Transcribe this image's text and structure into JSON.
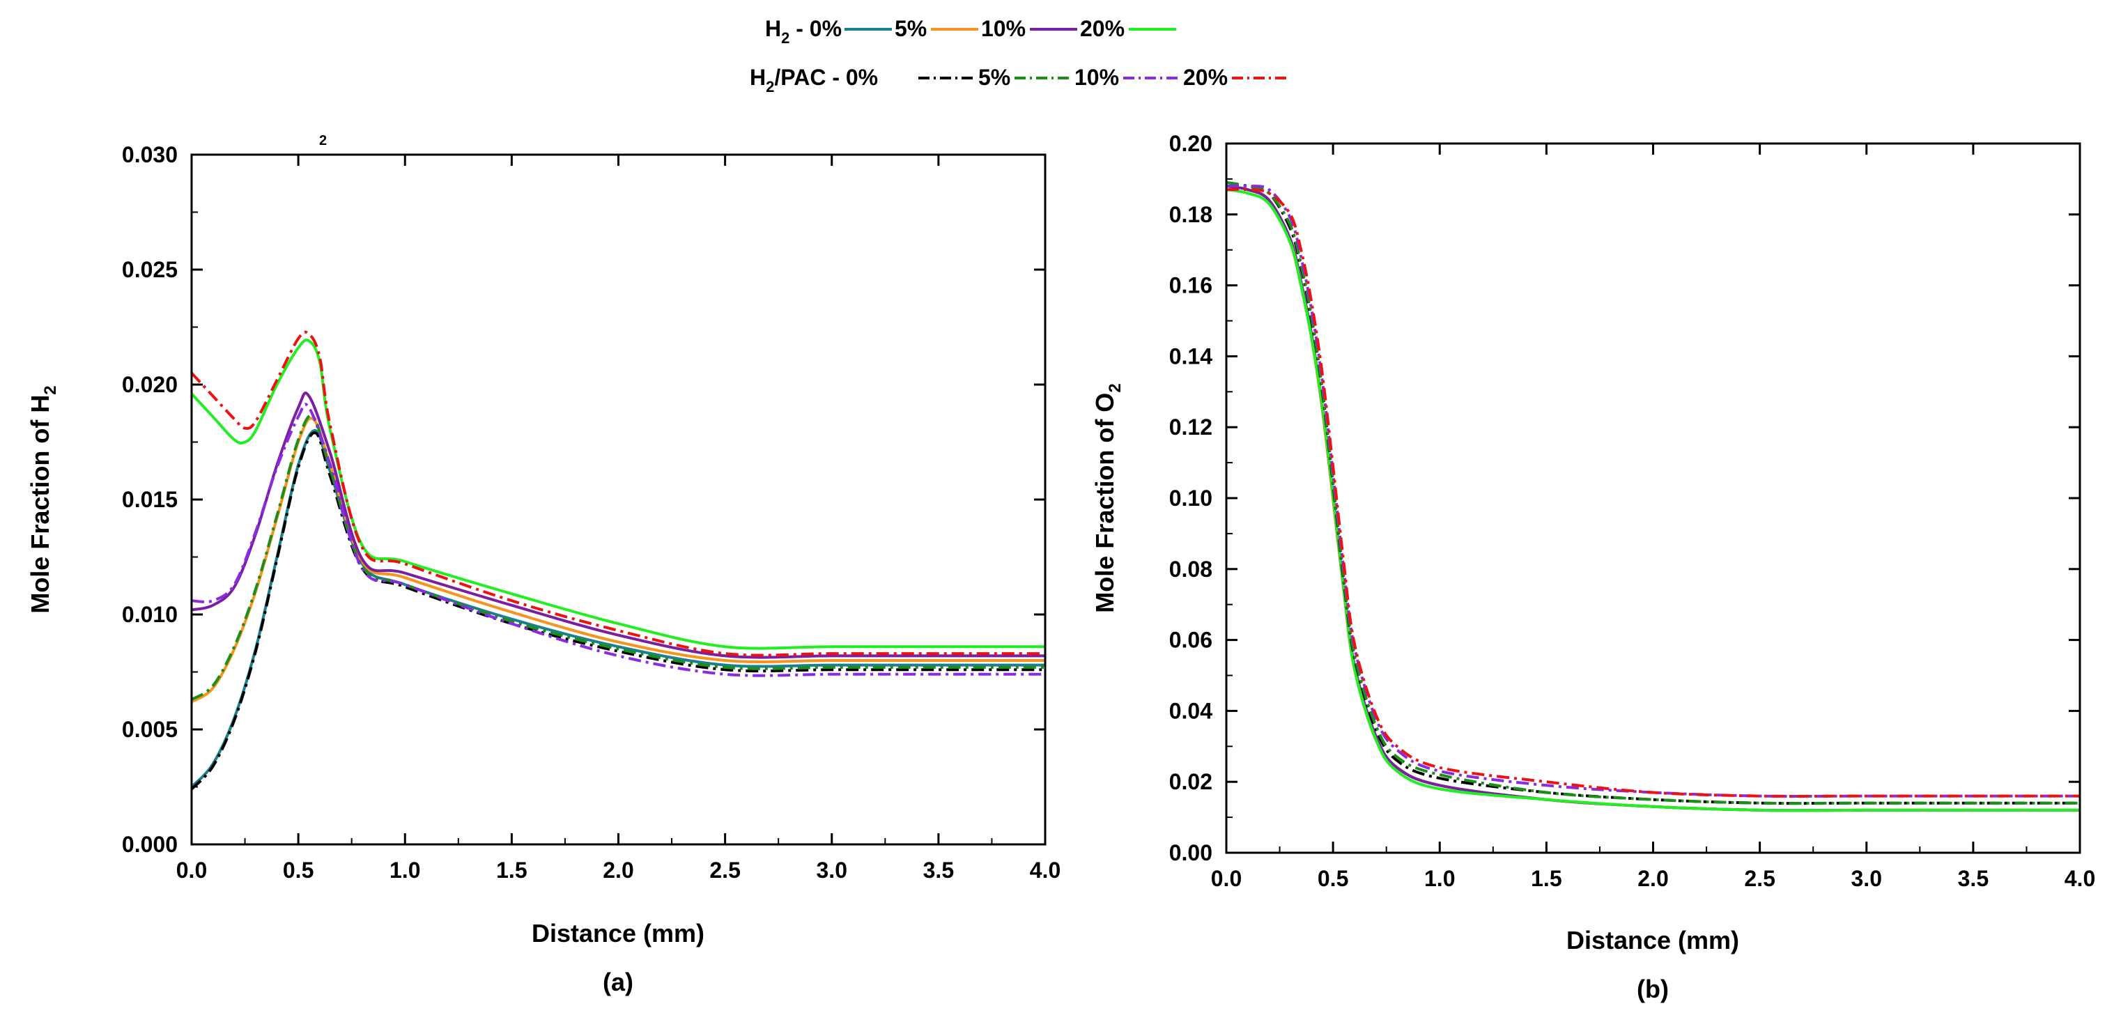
{
  "legend": {
    "h2_label": "H",
    "h2_sub": "2",
    "h2_suffix": " - 0%",
    "h2pac_label": "H",
    "h2pac_sub": "2",
    "h2pac_suffix": "/PAC - 0%",
    "pct5": "5%",
    "pct10": "10%",
    "pct20": "20%"
  },
  "colors": {
    "h2_0": "#1a7f8e",
    "h2_5": "#f7941d",
    "h2_10": "#7b1fa2",
    "h2_20": "#22ee22",
    "pac_0": "#000000",
    "pac_5": "#1a8f1a",
    "pac_10": "#8a2be2",
    "pac_20": "#ee1111"
  },
  "chart_data": [
    {
      "type": "line",
      "panel_label": "(a)",
      "xlabel": "Distance (mm)",
      "ylabel_main": "Mole Fraction of H",
      "ylabel_sub": "2",
      "stray_mark": "2",
      "xlim": [
        0,
        4.0
      ],
      "ylim": [
        0,
        0.03
      ],
      "xticks": [
        "0.0",
        "0.5",
        "1.0",
        "1.5",
        "2.0",
        "2.5",
        "3.0",
        "3.5",
        "4.0"
      ],
      "yticks": [
        "0.000",
        "0.005",
        "0.010",
        "0.015",
        "0.020",
        "0.025",
        "0.030"
      ],
      "series": [
        {
          "name": "H2 - 0%",
          "key": "h2_0",
          "dash": "solid",
          "x": [
            0,
            0.1,
            0.2,
            0.3,
            0.4,
            0.5,
            0.58,
            0.65,
            0.8,
            1.0,
            1.5,
            2.0,
            2.5,
            3.0,
            3.5,
            4.0
          ],
          "y": [
            0.0025,
            0.0035,
            0.0055,
            0.0085,
            0.0125,
            0.0165,
            0.018,
            0.0162,
            0.0122,
            0.0113,
            0.0098,
            0.0086,
            0.0078,
            0.0078,
            0.0078,
            0.0078
          ]
        },
        {
          "name": "H2 - 5%",
          "key": "h2_5",
          "dash": "solid",
          "x": [
            0,
            0.1,
            0.2,
            0.3,
            0.4,
            0.5,
            0.57,
            0.65,
            0.8,
            1.0,
            1.5,
            2.0,
            2.5,
            3.0,
            3.5,
            4.0
          ],
          "y": [
            0.0062,
            0.0068,
            0.0085,
            0.011,
            0.0142,
            0.0175,
            0.0185,
            0.0165,
            0.0123,
            0.0116,
            0.0101,
            0.0088,
            0.008,
            0.008,
            0.008,
            0.008
          ]
        },
        {
          "name": "H2 - 10%",
          "key": "h2_10",
          "dash": "solid",
          "x": [
            0,
            0.1,
            0.2,
            0.3,
            0.4,
            0.5,
            0.55,
            0.65,
            0.8,
            1.0,
            1.5,
            2.0,
            2.5,
            3.0,
            3.5,
            4.0
          ],
          "y": [
            0.0102,
            0.0104,
            0.0112,
            0.0135,
            0.0165,
            0.019,
            0.0195,
            0.017,
            0.0124,
            0.0118,
            0.0104,
            0.0091,
            0.0082,
            0.0082,
            0.0082,
            0.0082
          ]
        },
        {
          "name": "H2 - 20%",
          "key": "h2_20",
          "dash": "solid",
          "x": [
            0,
            0.1,
            0.2,
            0.25,
            0.3,
            0.4,
            0.5,
            0.55,
            0.6,
            0.65,
            0.8,
            1.0,
            1.5,
            2.0,
            2.5,
            3.0,
            3.5,
            4.0
          ],
          "y": [
            0.0196,
            0.0186,
            0.0176,
            0.0175,
            0.018,
            0.02,
            0.0216,
            0.0219,
            0.021,
            0.018,
            0.013,
            0.0123,
            0.0109,
            0.0096,
            0.0086,
            0.0086,
            0.0086,
            0.0086
          ]
        },
        {
          "name": "H2/PAC - 0%",
          "key": "pac_0",
          "dash": "dashdot",
          "x": [
            0,
            0.1,
            0.2,
            0.3,
            0.4,
            0.5,
            0.58,
            0.65,
            0.8,
            1.0,
            1.5,
            2.0,
            2.5,
            3.0,
            3.5,
            4.0
          ],
          "y": [
            0.0024,
            0.0034,
            0.0054,
            0.0084,
            0.0124,
            0.0164,
            0.0179,
            0.016,
            0.012,
            0.0112,
            0.0096,
            0.0084,
            0.0076,
            0.0076,
            0.0076,
            0.0076
          ]
        },
        {
          "name": "H2/PAC - 5%",
          "key": "pac_5",
          "dash": "dashdot",
          "x": [
            0,
            0.1,
            0.2,
            0.3,
            0.4,
            0.5,
            0.57,
            0.65,
            0.8,
            1.0,
            1.5,
            2.0,
            2.5,
            3.0,
            3.5,
            4.0
          ],
          "y": [
            0.0063,
            0.0069,
            0.0086,
            0.0111,
            0.0143,
            0.0176,
            0.0186,
            0.0163,
            0.0121,
            0.0113,
            0.0097,
            0.0085,
            0.0077,
            0.0077,
            0.0077,
            0.0077
          ]
        },
        {
          "name": "H2/PAC - 10%",
          "key": "pac_10",
          "dash": "dashdot",
          "x": [
            0,
            0.1,
            0.2,
            0.3,
            0.4,
            0.5,
            0.55,
            0.65,
            0.8,
            1.0,
            1.5,
            2.0,
            2.5,
            3.0,
            3.5,
            4.0
          ],
          "y": [
            0.0106,
            0.0106,
            0.0113,
            0.0136,
            0.0164,
            0.0186,
            0.019,
            0.0165,
            0.012,
            0.0113,
            0.0096,
            0.0082,
            0.0074,
            0.0074,
            0.0074,
            0.0074
          ]
        },
        {
          "name": "H2/PAC - 20%",
          "key": "pac_20",
          "dash": "dashdot",
          "x": [
            0,
            0.1,
            0.2,
            0.25,
            0.3,
            0.4,
            0.5,
            0.55,
            0.6,
            0.65,
            0.8,
            1.0,
            1.5,
            2.0,
            2.5,
            3.0,
            3.5,
            4.0
          ],
          "y": [
            0.0205,
            0.0195,
            0.0185,
            0.0181,
            0.0184,
            0.0202,
            0.022,
            0.0222,
            0.0212,
            0.0182,
            0.0129,
            0.0122,
            0.0106,
            0.0093,
            0.0083,
            0.0083,
            0.0083,
            0.0083
          ]
        }
      ]
    },
    {
      "type": "line",
      "panel_label": "(b)",
      "xlabel": "Distance (mm)",
      "ylabel_main": "Mole Fraction of O",
      "ylabel_sub": "2",
      "xlim": [
        0,
        4.0
      ],
      "ylim": [
        0,
        0.2
      ],
      "xticks": [
        "0.0",
        "0.5",
        "1.0",
        "1.5",
        "2.0",
        "2.5",
        "3.0",
        "3.5",
        "4.0"
      ],
      "yticks": [
        "0.00",
        "0.02",
        "0.04",
        "0.06",
        "0.08",
        "0.10",
        "0.12",
        "0.14",
        "0.16",
        "0.18",
        "0.20"
      ],
      "series": [
        {
          "name": "H2 - 0%",
          "key": "h2_0",
          "dash": "solid",
          "x": [
            0,
            0.1,
            0.2,
            0.3,
            0.35,
            0.4,
            0.45,
            0.5,
            0.55,
            0.6,
            0.7,
            0.8,
            1.0,
            1.5,
            2.0,
            2.5,
            3.0,
            3.5,
            4.0
          ],
          "y": [
            0.188,
            0.187,
            0.184,
            0.172,
            0.16,
            0.145,
            0.125,
            0.1,
            0.074,
            0.052,
            0.032,
            0.024,
            0.019,
            0.015,
            0.013,
            0.012,
            0.012,
            0.012,
            0.012
          ]
        },
        {
          "name": "H2 - 5%",
          "key": "h2_5",
          "dash": "solid",
          "x": [
            0,
            0.1,
            0.2,
            0.3,
            0.35,
            0.4,
            0.45,
            0.5,
            0.55,
            0.6,
            0.7,
            0.8,
            1.0,
            1.5,
            2.0,
            2.5,
            3.0,
            3.5,
            4.0
          ],
          "y": [
            0.188,
            0.187,
            0.184,
            0.172,
            0.16,
            0.145,
            0.125,
            0.1,
            0.074,
            0.052,
            0.032,
            0.024,
            0.019,
            0.015,
            0.013,
            0.012,
            0.012,
            0.012,
            0.012
          ]
        },
        {
          "name": "H2 - 10%",
          "key": "h2_10",
          "dash": "solid",
          "x": [
            0,
            0.1,
            0.2,
            0.3,
            0.35,
            0.4,
            0.45,
            0.5,
            0.55,
            0.6,
            0.7,
            0.8,
            1.0,
            1.5,
            2.0,
            2.5,
            3.0,
            3.5,
            4.0
          ],
          "y": [
            0.188,
            0.187,
            0.184,
            0.173,
            0.161,
            0.146,
            0.126,
            0.101,
            0.075,
            0.053,
            0.033,
            0.024,
            0.019,
            0.015,
            0.013,
            0.012,
            0.012,
            0.012,
            0.012
          ]
        },
        {
          "name": "H2 - 20%",
          "key": "h2_20",
          "dash": "solid",
          "x": [
            0,
            0.1,
            0.2,
            0.3,
            0.35,
            0.4,
            0.45,
            0.5,
            0.55,
            0.6,
            0.7,
            0.8,
            1.0,
            1.5,
            2.0,
            2.5,
            3.0,
            3.5,
            4.0
          ],
          "y": [
            0.187,
            0.186,
            0.183,
            0.172,
            0.16,
            0.145,
            0.126,
            0.101,
            0.075,
            0.052,
            0.032,
            0.023,
            0.018,
            0.015,
            0.013,
            0.012,
            0.012,
            0.012,
            0.012
          ]
        },
        {
          "name": "H2/PAC - 0%",
          "key": "pac_0",
          "dash": "dashdot",
          "x": [
            0,
            0.1,
            0.2,
            0.3,
            0.35,
            0.4,
            0.45,
            0.5,
            0.55,
            0.6,
            0.7,
            0.8,
            1.0,
            1.5,
            2.0,
            2.5,
            3.0,
            3.5,
            4.0
          ],
          "y": [
            0.189,
            0.188,
            0.186,
            0.176,
            0.165,
            0.15,
            0.13,
            0.104,
            0.077,
            0.055,
            0.035,
            0.026,
            0.021,
            0.017,
            0.015,
            0.014,
            0.014,
            0.014,
            0.014
          ]
        },
        {
          "name": "H2/PAC - 5%",
          "key": "pac_5",
          "dash": "dashdot",
          "x": [
            0,
            0.1,
            0.2,
            0.3,
            0.35,
            0.4,
            0.45,
            0.5,
            0.55,
            0.6,
            0.7,
            0.8,
            1.0,
            1.5,
            2.0,
            2.5,
            3.0,
            3.5,
            4.0
          ],
          "y": [
            0.189,
            0.188,
            0.186,
            0.177,
            0.166,
            0.151,
            0.131,
            0.105,
            0.078,
            0.056,
            0.036,
            0.027,
            0.022,
            0.017,
            0.015,
            0.014,
            0.014,
            0.014,
            0.014
          ]
        },
        {
          "name": "H2/PAC - 10%",
          "key": "pac_10",
          "dash": "dashdot",
          "x": [
            0,
            0.1,
            0.2,
            0.3,
            0.35,
            0.4,
            0.45,
            0.5,
            0.55,
            0.6,
            0.7,
            0.8,
            1.0,
            1.5,
            2.0,
            2.5,
            3.0,
            3.5,
            4.0
          ],
          "y": [
            0.188,
            0.188,
            0.187,
            0.179,
            0.168,
            0.153,
            0.133,
            0.107,
            0.08,
            0.058,
            0.038,
            0.029,
            0.023,
            0.019,
            0.017,
            0.016,
            0.016,
            0.016,
            0.016
          ]
        },
        {
          "name": "H2/PAC - 20%",
          "key": "pac_20",
          "dash": "dashdot",
          "x": [
            0,
            0.1,
            0.2,
            0.3,
            0.35,
            0.4,
            0.45,
            0.5,
            0.55,
            0.6,
            0.7,
            0.8,
            1.0,
            1.5,
            2.0,
            2.5,
            3.0,
            3.5,
            4.0
          ],
          "y": [
            0.187,
            0.187,
            0.186,
            0.18,
            0.17,
            0.155,
            0.135,
            0.109,
            0.082,
            0.059,
            0.039,
            0.03,
            0.024,
            0.02,
            0.017,
            0.016,
            0.016,
            0.016,
            0.016
          ]
        }
      ]
    }
  ]
}
